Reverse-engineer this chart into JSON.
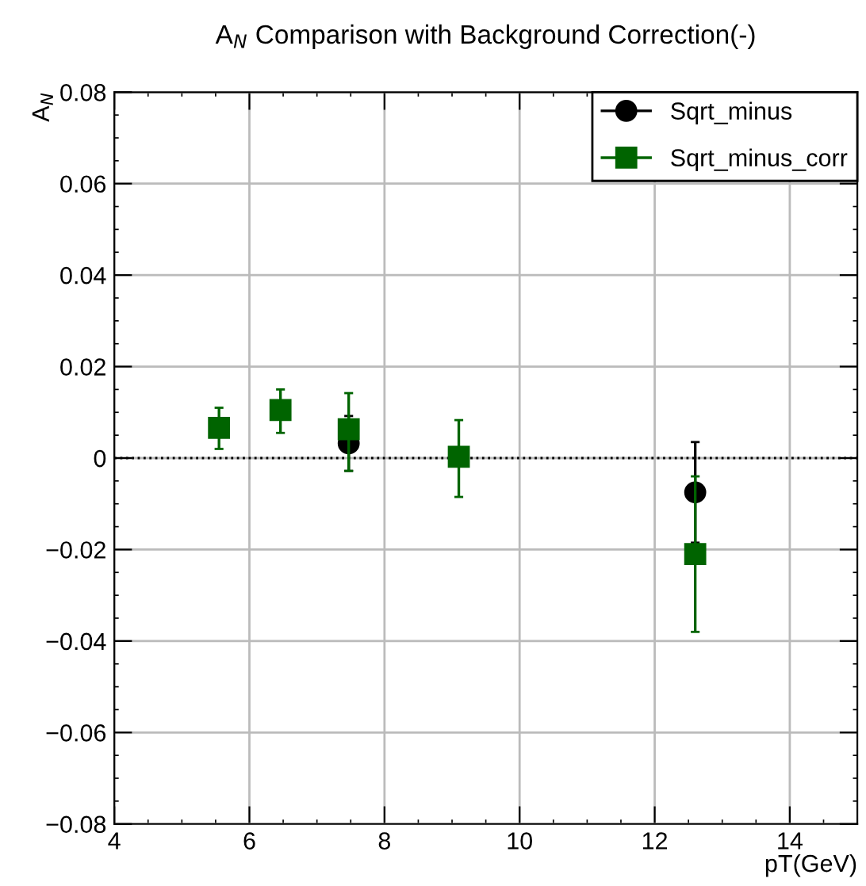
{
  "chart_data": {
    "type": "scatter",
    "title": "A$_{N}$ Comparison with Background Correction(-)",
    "xlabel": "pT(GeV)",
    "ylabel": "A$_{N}$",
    "series": [
      {
        "name": "Sqrt_minus",
        "color": "#000000",
        "marker": "circle",
        "x": [
          7.47,
          12.6
        ],
        "values": [
          0.0032,
          -0.0075
        ],
        "errors": [
          [
            -0.0028,
            0.0092
          ],
          [
            -0.0185,
            0.0035
          ]
        ]
      },
      {
        "name": "Sqrt_minus_corr",
        "color": "#006400",
        "marker": "square",
        "x": [
          5.55,
          6.46,
          7.47,
          9.1,
          12.6
        ],
        "values": [
          0.0066,
          0.0105,
          0.0063,
          0.0003,
          -0.021
        ],
        "errors": [
          [
            0.002,
            0.011
          ],
          [
            0.0055,
            0.015
          ],
          [
            -0.0028,
            0.0142
          ],
          [
            -0.0085,
            0.0083
          ],
          [
            -0.038,
            -0.004
          ]
        ]
      }
    ],
    "xlim": [
      4,
      15
    ],
    "xticks": [
      4,
      6,
      8,
      10,
      12,
      14
    ],
    "ylim": [
      -0.08,
      0.08
    ],
    "yticks": [
      -0.08,
      -0.06,
      -0.04,
      -0.02,
      0,
      0.02,
      0.04,
      0.06,
      0.08
    ],
    "ref_lines": [
      {
        "axis": "y",
        "value": 0,
        "line_style": "dotted",
        "color": "#000000"
      }
    ],
    "grid": true,
    "legend": "top right"
  }
}
